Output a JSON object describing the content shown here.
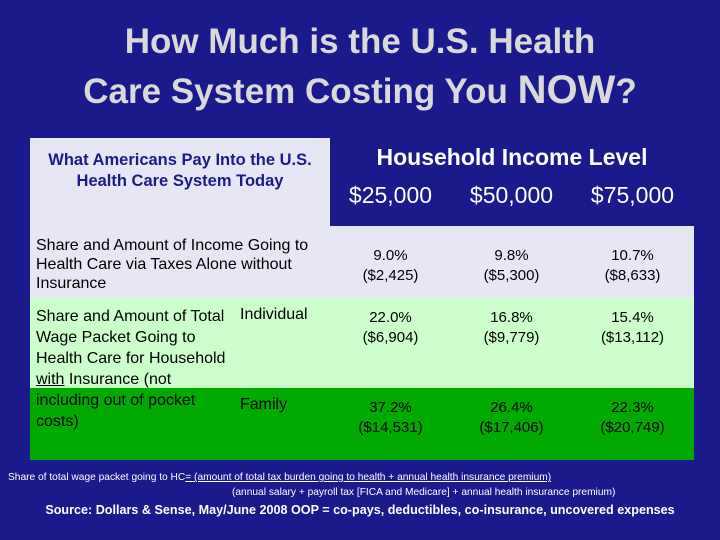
{
  "title": {
    "line1": "How Much is the U.S. Health",
    "line2_prefix": "Care System Costing You ",
    "line2_now": "NOW",
    "line2_suffix": "?"
  },
  "table": {
    "corner_heading": "What Americans Pay Into the U.S. Health Care System Today",
    "group_heading": "Household Income Level",
    "income_levels": [
      "$25,000",
      "$50,000",
      "$75,000"
    ],
    "taxes_row": {
      "label": "Share and Amount of Income Going to Health Care via Taxes Alone without Insurance",
      "values": [
        {
          "pct": "9.0%",
          "amt": "($2,425)"
        },
        {
          "pct": "9.8%",
          "amt": "($5,300)"
        },
        {
          "pct": "10.7%",
          "amt": "($8,633)"
        }
      ]
    },
    "insurance_rows": {
      "label_part1": "Share and Amount of Total Wage Packet Going to Health Care for Household ",
      "label_with": "with",
      "label_part2": " Insurance (not including out of pocket costs)",
      "individual": {
        "label": "Individual",
        "values": [
          {
            "pct": "22.0%",
            "amt": "($6,904)"
          },
          {
            "pct": "16.8%",
            "amt": "($9,779)"
          },
          {
            "pct": "15.4%",
            "amt": "($13,112)"
          }
        ]
      },
      "family": {
        "label": "Family",
        "values": [
          {
            "pct": "37.2%",
            "amt": "($14,531)"
          },
          {
            "pct": "26.4%",
            "amt": "($17,406)"
          },
          {
            "pct": "22.3%",
            "amt": "($20,749)"
          }
        ]
      }
    }
  },
  "footnote": {
    "prefix": "Share of total wage packet going to HC",
    "numerator": "= (amount of total tax burden going to health + annual health insurance premium)",
    "denominator": "(annual salary + payroll tax [FICA and Medicare] + annual health insurance premium)"
  },
  "source": "Source: Dollars & Sense, May/June 2008 OOP = co-pays, deductibles, co-insurance, uncovered expenses",
  "colors": {
    "background": "#1a1a8c",
    "title_text": "#d9d9d9",
    "table_light": "#e6e6f5",
    "individual_row": "#ccffcc",
    "family_row": "#00aa00"
  }
}
